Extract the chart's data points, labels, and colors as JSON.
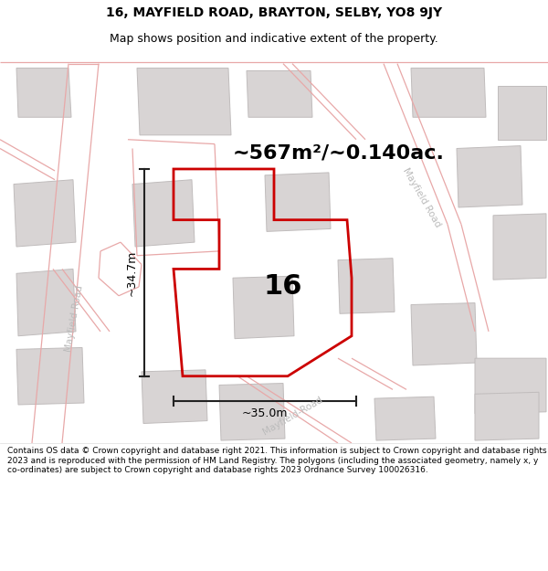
{
  "title_line1": "16, MAYFIELD ROAD, BRAYTON, SELBY, YO8 9JY",
  "title_line2": "Map shows position and indicative extent of the property.",
  "area_label": "~567m²/~0.140ac.",
  "property_number": "16",
  "dim_height": "~34.7m",
  "dim_width": "~35.0m",
  "footer": "Contains OS data © Crown copyright and database right 2021. This information is subject to Crown copyright and database rights 2023 and is reproduced with the permission of HM Land Registry. The polygons (including the associated geometry, namely x, y co-ordinates) are subject to Crown copyright and database rights 2023 Ordnance Survey 100026316.",
  "map_bg": "#f0eeee",
  "road_line_color": "#e8a8a8",
  "building_fill": "#d8d4d4",
  "building_edge": "#c0bcbc",
  "property_color": "#cc0000",
  "dim_color": "#222222",
  "road_label_color": "#bbbbbb",
  "title_fontsize": 10,
  "subtitle_fontsize": 9,
  "area_fontsize": 16,
  "number_fontsize": 22,
  "dim_fontsize": 9,
  "road_label_fontsize": 7.5
}
